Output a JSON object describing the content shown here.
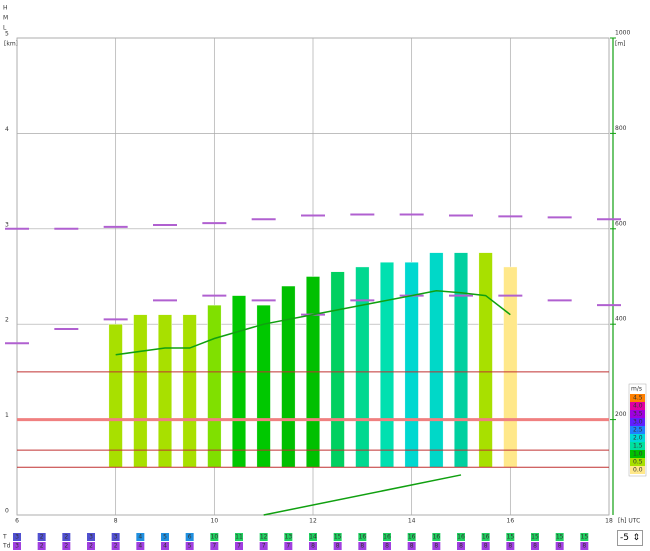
{
  "chart_data": {
    "type": "bar",
    "layer_labels": [
      "H",
      "M",
      "L"
    ],
    "y_unit": "[km]",
    "y2_unit": "[m]",
    "x_unit": "[h] UTC",
    "xlim": [
      6,
      18
    ],
    "xticks": [
      6,
      8,
      10,
      12,
      14,
      16,
      18
    ],
    "ylim": [
      0,
      5
    ],
    "yticks": [
      0,
      1,
      2,
      3,
      4,
      5
    ],
    "y2lim": [
      0,
      1000
    ],
    "y2ticks": [
      200,
      400,
      600,
      800,
      1000
    ],
    "grid": true,
    "bars": {
      "x": [
        8,
        8.5,
        9,
        9.5,
        10,
        10.5,
        11,
        11.5,
        12,
        12.5,
        13,
        13.5,
        14,
        14.5,
        15,
        15.5,
        16
      ],
      "base": 0.5,
      "values": [
        2.0,
        2.1,
        2.1,
        2.1,
        2.2,
        2.3,
        2.2,
        2.4,
        2.5,
        2.55,
        2.6,
        2.65,
        2.65,
        2.75,
        2.75,
        2.75,
        2.6
      ],
      "colors": [
        "#a8e000",
        "#a8e000",
        "#a8e000",
        "#a8e000",
        "#80e000",
        "#00c800",
        "#00c800",
        "#00c000",
        "#00c000",
        "#00d060",
        "#00d890",
        "#00e0b0",
        "#00d8d0",
        "#00d8c8",
        "#00d0a0",
        "#a8e000",
        "#ffe88a"
      ]
    },
    "levels": [
      1.5,
      1.0,
      0.68,
      0.5
    ],
    "line_upper": {
      "color": "#b060d0",
      "x": [
        6,
        7,
        8,
        9,
        10,
        11,
        12,
        13,
        14,
        15,
        16,
        17,
        18
      ],
      "values": [
        3.0,
        3.0,
        3.02,
        3.04,
        3.06,
        3.1,
        3.14,
        3.15,
        3.15,
        3.14,
        3.13,
        3.12,
        3.1
      ]
    },
    "line_mid": {
      "color": "#b060d0",
      "x": [
        6,
        7,
        8,
        9,
        10,
        11,
        12,
        13,
        14,
        15,
        16,
        17,
        18
      ],
      "values": [
        1.8,
        1.95,
        2.05,
        2.25,
        2.3,
        2.25,
        2.1,
        2.25,
        2.3,
        2.3,
        2.3,
        2.25,
        2.2
      ]
    },
    "line_green": {
      "color": "#10a010",
      "x": [
        8,
        9,
        9.5,
        10,
        11,
        12,
        13,
        14,
        14.5,
        15,
        15.5,
        16
      ],
      "values": [
        1.68,
        1.75,
        1.75,
        1.85,
        2.0,
        2.1,
        2.2,
        2.3,
        2.35,
        2.33,
        2.3,
        2.1
      ]
    },
    "line_bottom": {
      "color": "#10a010",
      "x": [
        11,
        15
      ],
      "values": [
        0.0,
        0.42
      ]
    },
    "legend_title": "m/s",
    "legend": [
      {
        "label": "4.5",
        "color": "#ff8000"
      },
      {
        "label": "4.0",
        "color": "#e000a0"
      },
      {
        "label": "3.5",
        "color": "#a000e0"
      },
      {
        "label": "3.0",
        "color": "#6020ff"
      },
      {
        "label": "2.5",
        "color": "#2080ff"
      },
      {
        "label": "2.0",
        "color": "#00d8d8"
      },
      {
        "label": "1.5",
        "color": "#00e0a0"
      },
      {
        "label": "1.0",
        "color": "#00c000"
      },
      {
        "label": "0.5",
        "color": "#a8e000"
      },
      {
        "label": "0.0",
        "color": "#ffe88a"
      }
    ],
    "row_T_label": "T",
    "row_Td_label": "Td",
    "row_x": [
      6,
      6.5,
      7,
      7.5,
      8,
      8.5,
      9,
      9.5,
      10,
      10.5,
      11,
      11.5,
      12,
      12.5,
      13,
      13.5,
      14,
      14.5,
      15,
      15.5,
      16,
      16.5,
      17,
      17.5
    ],
    "T": [
      3,
      2,
      2,
      3,
      3,
      4,
      5,
      6,
      10,
      11,
      12,
      13,
      14,
      15,
      16,
      16,
      16,
      16,
      16,
      16,
      15,
      15,
      15,
      15
    ],
    "Td": [
      3,
      2,
      2,
      2,
      2,
      4,
      4,
      5,
      7,
      7,
      7,
      7,
      8,
      8,
      8,
      8,
      8,
      8,
      8,
      8,
      8,
      8,
      8,
      8
    ],
    "offset": -5
  }
}
